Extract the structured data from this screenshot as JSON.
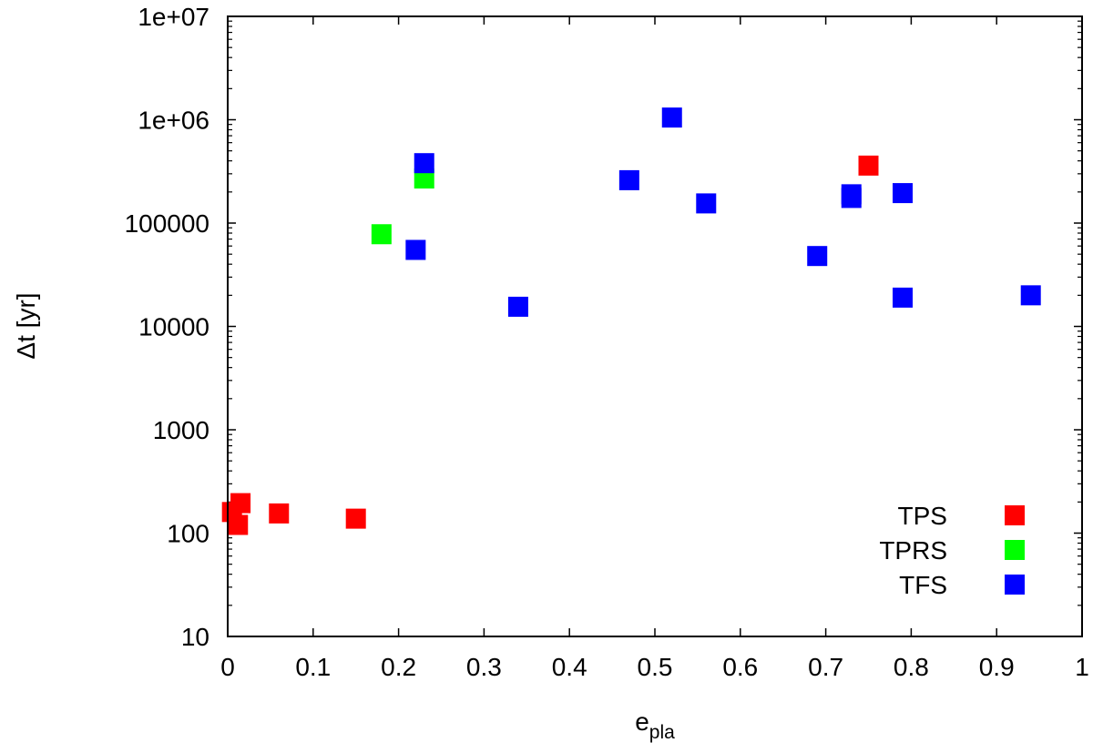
{
  "chart_data": {
    "type": "scatter",
    "xlabel": {
      "base": "e",
      "sub": "pla"
    },
    "ylabel": "Δt [yr]",
    "xlim": [
      0,
      1
    ],
    "ylim": [
      10,
      10000000
    ],
    "yscale": "log",
    "grid": false,
    "legend_position": "bottom-right",
    "x_ticks": [
      "0",
      "0.1",
      "0.2",
      "0.3",
      "0.4",
      "0.5",
      "0.6",
      "0.7",
      "0.8",
      "0.9",
      "1"
    ],
    "y_ticks": [
      "10",
      "100",
      "1000",
      "10000",
      "100000",
      "1e+06",
      "1e+07"
    ],
    "series": [
      {
        "name": "TPS",
        "color": "#ff0000",
        "points": [
          {
            "x": 0.005,
            "y": 160
          },
          {
            "x": 0.015,
            "y": 195
          },
          {
            "x": 0.012,
            "y": 120
          },
          {
            "x": 0.06,
            "y": 155
          },
          {
            "x": 0.15,
            "y": 138
          },
          {
            "x": 0.75,
            "y": 360000
          }
        ]
      },
      {
        "name": "TPRS",
        "color": "#00ff00",
        "points": [
          {
            "x": 0.18,
            "y": 78000
          },
          {
            "x": 0.23,
            "y": 270000
          }
        ]
      },
      {
        "name": "TFS",
        "color": "#0000ff",
        "points": [
          {
            "x": 0.22,
            "y": 55000
          },
          {
            "x": 0.23,
            "y": 380000
          },
          {
            "x": 0.34,
            "y": 15500
          },
          {
            "x": 0.47,
            "y": 260000
          },
          {
            "x": 0.52,
            "y": 1050000
          },
          {
            "x": 0.56,
            "y": 155000
          },
          {
            "x": 0.69,
            "y": 48000
          },
          {
            "x": 0.73,
            "y": 190000
          },
          {
            "x": 0.73,
            "y": 175000
          },
          {
            "x": 0.79,
            "y": 195000
          },
          {
            "x": 0.79,
            "y": 19000
          },
          {
            "x": 0.94,
            "y": 20000
          }
        ]
      }
    ]
  }
}
